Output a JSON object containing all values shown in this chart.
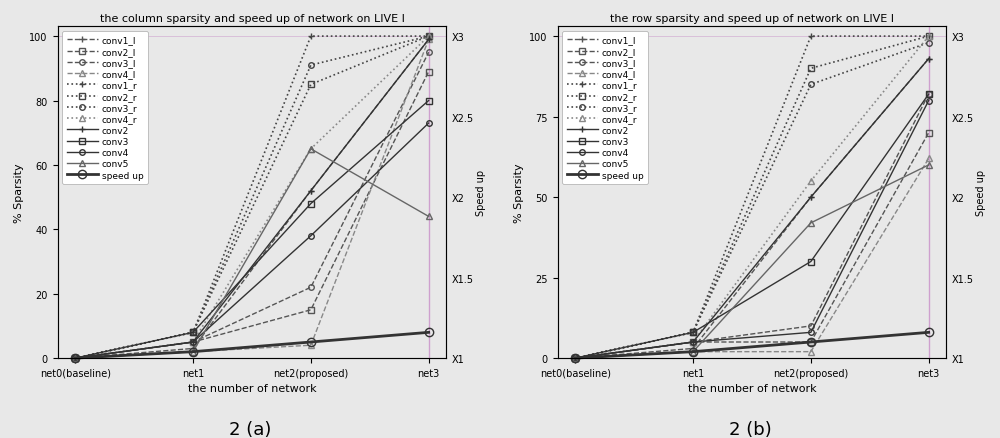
{
  "title_a": "the column sparsity and speed up of network on LIVE I",
  "title_b": "the row sparsity and speed up of network on LIVE I",
  "xlabel": "the number of network",
  "ylabel_a": "% Sparsity",
  "ylabel_b": "% Sparsity",
  "ylabel_right": "Speed up",
  "caption_a": "2 (a)",
  "caption_b": "2 (b)",
  "xtick_labels": [
    "net0(baseline)",
    "net1",
    "net2(proposed)",
    "net3"
  ],
  "yticks_a": [
    0,
    20,
    40,
    60,
    80,
    100
  ],
  "yticks_b": [
    0,
    25,
    50,
    75,
    100
  ],
  "right_ytick_positions": [
    0,
    25,
    50,
    75,
    100
  ],
  "right_yticklabels": [
    "X1",
    "X1.5",
    "X2",
    "X2.5",
    "X3"
  ],
  "series_a": {
    "conv1_l": [
      0,
      3,
      52,
      99
    ],
    "conv2_l": [
      0,
      5,
      15,
      89
    ],
    "conv3_l": [
      0,
      5,
      22,
      95
    ],
    "conv4_l": [
      0,
      2,
      4,
      99
    ],
    "conv1_r": [
      0,
      8,
      100,
      100
    ],
    "conv2_r": [
      0,
      8,
      85,
      100
    ],
    "conv3_r": [
      0,
      8,
      91,
      100
    ],
    "conv4_r": [
      0,
      5,
      65,
      100
    ],
    "conv2": [
      0,
      5,
      52,
      99
    ],
    "conv3": [
      0,
      8,
      48,
      80
    ],
    "conv4": [
      0,
      5,
      38,
      73
    ],
    "conv5": [
      0,
      2,
      65,
      44
    ],
    "speed_up": [
      0,
      2,
      5,
      8
    ]
  },
  "series_b": {
    "conv1_l": [
      0,
      3,
      50,
      93
    ],
    "conv2_l": [
      0,
      5,
      5,
      70
    ],
    "conv3_l": [
      0,
      5,
      10,
      82
    ],
    "conv4_l": [
      0,
      2,
      2,
      62
    ],
    "conv1_r": [
      0,
      8,
      100,
      100
    ],
    "conv2_r": [
      0,
      8,
      90,
      100
    ],
    "conv3_r": [
      0,
      8,
      85,
      98
    ],
    "conv4_r": [
      0,
      5,
      55,
      100
    ],
    "conv2": [
      0,
      5,
      50,
      93
    ],
    "conv3": [
      0,
      8,
      30,
      82
    ],
    "conv4": [
      0,
      5,
      8,
      80
    ],
    "conv5": [
      0,
      2,
      42,
      60
    ],
    "speed_up": [
      0,
      2,
      5,
      8
    ]
  },
  "line_defs": {
    "conv1_l": {
      "ls": "--",
      "marker": "+",
      "color": "#555555",
      "lw": 1.0,
      "ms": 5,
      "mfc": "none"
    },
    "conv2_l": {
      "ls": "--",
      "marker": "s",
      "color": "#555555",
      "lw": 1.0,
      "ms": 4,
      "mfc": "none"
    },
    "conv3_l": {
      "ls": "--",
      "marker": "o",
      "color": "#555555",
      "lw": 1.0,
      "ms": 4,
      "mfc": "none"
    },
    "conv4_l": {
      "ls": "--",
      "marker": "^",
      "color": "#888888",
      "lw": 1.0,
      "ms": 4,
      "mfc": "none"
    },
    "conv1_r": {
      "ls": ":",
      "marker": "+",
      "color": "#444444",
      "lw": 1.2,
      "ms": 5,
      "mfc": "none"
    },
    "conv2_r": {
      "ls": ":",
      "marker": "s",
      "color": "#444444",
      "lw": 1.2,
      "ms": 4,
      "mfc": "none"
    },
    "conv3_r": {
      "ls": ":",
      "marker": "o",
      "color": "#444444",
      "lw": 1.2,
      "ms": 4,
      "mfc": "none"
    },
    "conv4_r": {
      "ls": ":",
      "marker": "^",
      "color": "#888888",
      "lw": 1.2,
      "ms": 4,
      "mfc": "none"
    },
    "conv2": {
      "ls": "-",
      "marker": "+",
      "color": "#333333",
      "lw": 1.0,
      "ms": 5,
      "mfc": "#333333"
    },
    "conv3": {
      "ls": "-",
      "marker": "s",
      "color": "#333333",
      "lw": 1.0,
      "ms": 4,
      "mfc": "none"
    },
    "conv4": {
      "ls": "-",
      "marker": "o",
      "color": "#333333",
      "lw": 1.0,
      "ms": 4,
      "mfc": "none"
    },
    "conv5": {
      "ls": "-",
      "marker": "^",
      "color": "#666666",
      "lw": 1.0,
      "ms": 4,
      "mfc": "none"
    },
    "speed_up": {
      "ls": "-",
      "marker": "o",
      "color": "#333333",
      "lw": 2.0,
      "ms": 6,
      "mfc": "none"
    }
  },
  "legend_labels": {
    "conv1_l": "conv1_l",
    "conv2_l": "conv2_l",
    "conv3_l": "conv3_l",
    "conv4_l": "conv4_l",
    "conv1_r": "conv1_r",
    "conv2_r": "conv2_r",
    "conv3_r": "conv3_r",
    "conv4_r": "conv4_r",
    "conv2": "conv2",
    "conv3": "conv3",
    "conv4": "conv4",
    "conv5": "conv5",
    "speed_up": "speed up"
  },
  "series_order": [
    "conv1_l",
    "conv2_l",
    "conv3_l",
    "conv4_l",
    "conv1_r",
    "conv2_r",
    "conv3_r",
    "conv4_r",
    "conv2",
    "conv3",
    "conv4",
    "conv5",
    "speed_up"
  ]
}
